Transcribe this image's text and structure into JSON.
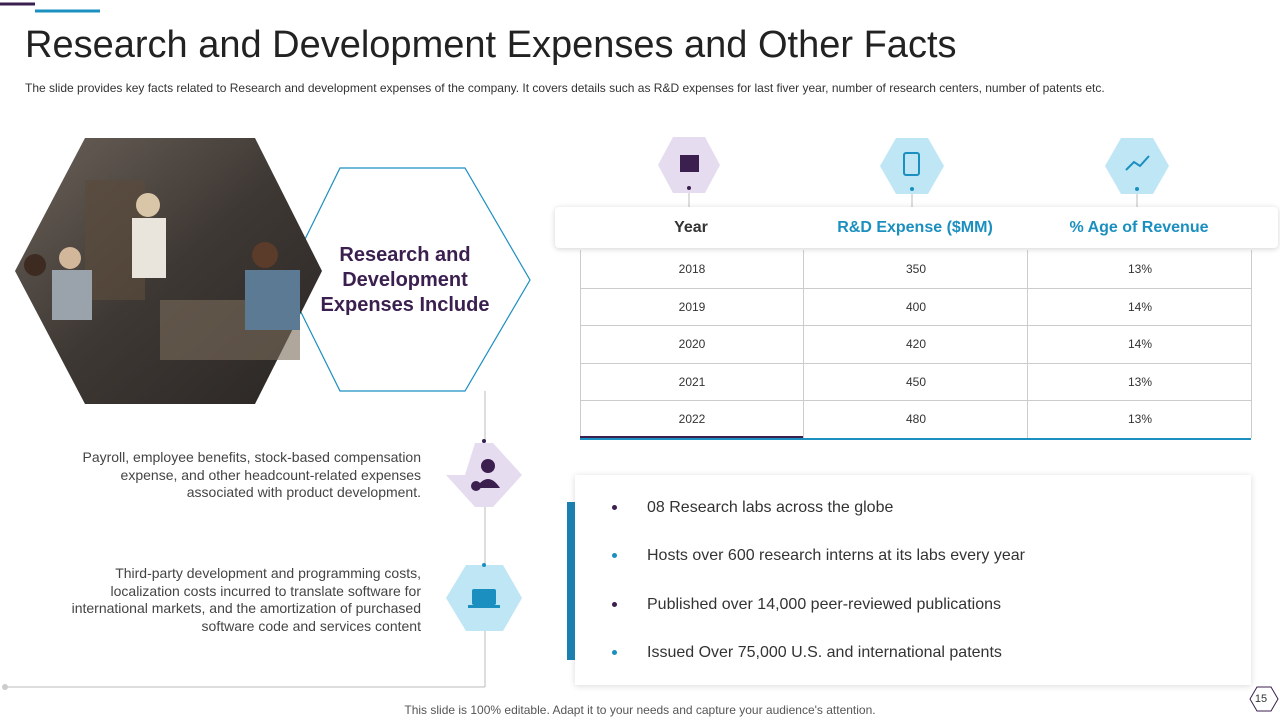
{
  "header": {
    "title": "Research and Development Expenses and Other Facts",
    "subtitle": "The slide provides  key facts related to Research  and development  expenses of the company. It covers  details such as R&D expenses for last fiver  year, number of research centers, number of patents etc."
  },
  "hexagon_title": "Research and Development Expenses Include",
  "expenses": [
    "Payroll, employee benefits, stock-based compensation expense, and other headcount-related expenses associated with product development.",
    "Third-party development and programming costs, localization costs incurred to translate software for international markets, and the amortization of purchased software code and services content"
  ],
  "table": {
    "headers": [
      "Year",
      "R&D Expense ($MM)",
      "% Age of Revenue"
    ],
    "rows": [
      [
        "2018",
        "350",
        "13%"
      ],
      [
        "2019",
        "400",
        "14%"
      ],
      [
        "2020",
        "420",
        "14%"
      ],
      [
        "2021",
        "450",
        "13%"
      ],
      [
        "2022",
        "480",
        "13%"
      ]
    ]
  },
  "facts": [
    "08 Research labs across the globe",
    "Hosts over 600 research interns  at its labs every year",
    "Published over 14,000 peer-reviewed publications",
    "Issued Over 75,000 U.S. and international patents"
  ],
  "footer": "This slide is 100% editable. Adapt it to your needs and capture your audience's attention.",
  "page_number": "15"
}
